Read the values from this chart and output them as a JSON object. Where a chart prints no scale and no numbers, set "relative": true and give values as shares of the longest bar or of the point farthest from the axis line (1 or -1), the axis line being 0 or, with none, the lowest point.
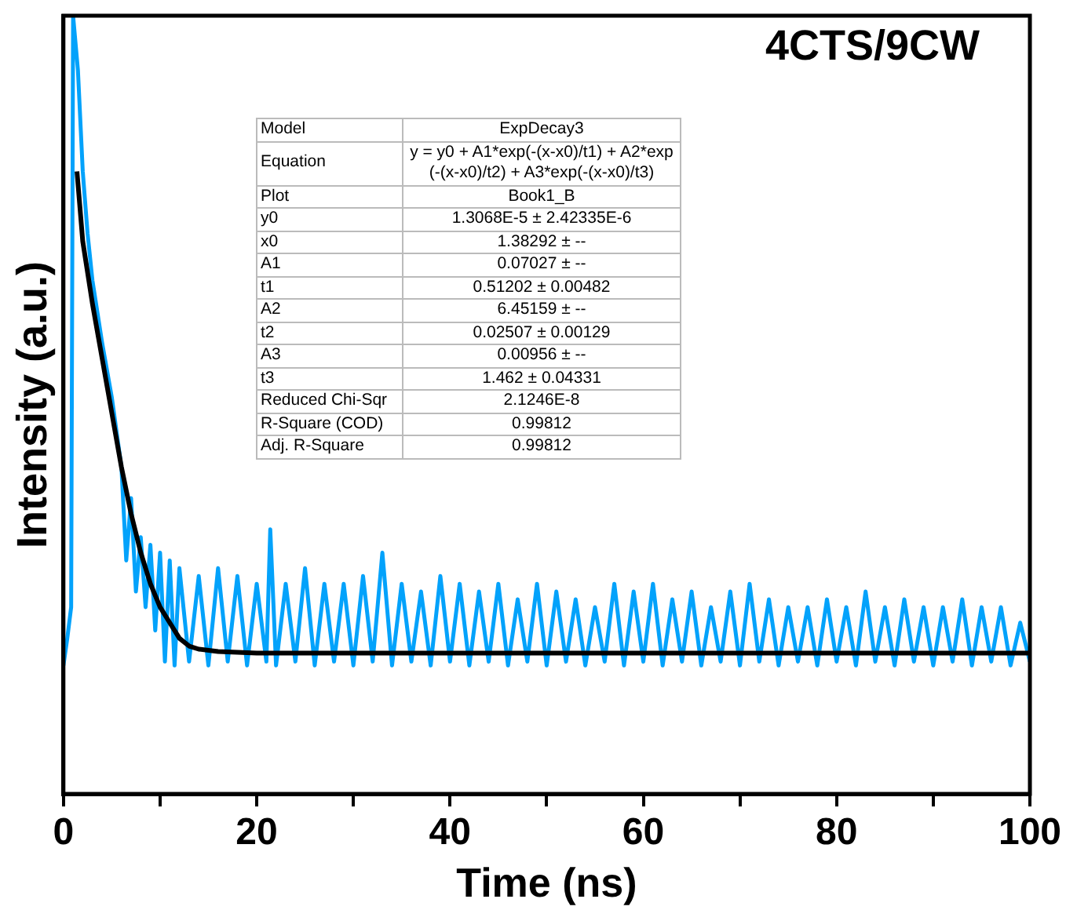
{
  "chart_data": {
    "type": "line",
    "relative": true,
    "title": "4CTS/9CW",
    "xlabel": "Time (ns)",
    "ylabel": "Intensity (a.u.)",
    "xlim": [
      0,
      100
    ],
    "xticks": [
      0,
      {
        "value": 10,
        "label": null
      },
      20,
      {
        "value": 30,
        "label": null
      },
      40,
      {
        "value": 50,
        "label": null
      },
      60,
      {
        "value": 70,
        "label": null
      },
      80,
      {
        "value": 90,
        "label": null
      },
      100
    ],
    "tick_labels": "x",
    "grid": false,
    "legend": false,
    "marker": "none",
    "line_style": "solid",
    "annotations": [
      "Model",
      "ExpDecay3",
      "Equation",
      "y = y0 + A1*exp(-(x-x0)/t1) + A2*exp(-(x-x0)/t2) + A3*exp(-(x-x0)/t3)",
      "Plot",
      "Book1_B",
      "y0",
      "1.3068E-5 ± 2.42335E-6",
      "x0",
      "1.38292 ± --",
      "A1",
      "0.07027 ± --",
      "t1",
      "0.51202 ± 0.00482",
      "A2",
      "6.45159 ± --",
      "t2",
      "0.02507 ± 0.00129",
      "A3",
      "0.00956 ± --",
      "t3",
      "1.462 ± 0.04331",
      "Reduced Chi-Sqr",
      "2.1246E-8",
      "R-Square (COD)",
      "0.99812",
      "Adj. R-Square",
      "0.99812"
    ],
    "series": [
      {
        "color": "#03a2fb",
        "x": [
          0,
          0.4,
          0.8,
          1.0,
          1.5,
          2,
          2.5,
          3,
          4,
          5,
          6,
          6.5,
          7,
          7.5,
          8,
          8.5,
          9,
          9.5,
          10,
          10.5,
          11,
          11.5,
          12,
          13,
          14,
          15,
          16,
          17,
          18,
          19,
          20,
          21,
          21.4,
          22,
          23,
          24,
          25,
          26,
          27,
          28,
          29,
          30,
          31,
          32,
          33,
          34,
          35,
          36,
          37,
          38,
          39,
          40,
          41,
          42,
          43,
          44,
          45,
          46,
          47,
          48,
          49,
          50,
          51,
          52,
          53,
          54,
          55,
          56,
          57,
          58,
          59,
          60,
          61,
          62,
          63,
          64,
          65,
          66,
          67,
          68,
          69,
          70,
          71,
          72,
          73,
          74,
          75,
          76,
          77,
          78,
          79,
          80,
          81,
          82,
          83,
          84,
          85,
          86,
          87,
          88,
          89,
          90,
          91,
          92,
          93,
          94,
          95,
          96,
          97,
          98,
          99,
          100
        ],
        "values": [
          0.165,
          0.2,
          0.24,
          1.0,
          0.93,
          0.8,
          0.72,
          0.66,
          0.58,
          0.51,
          0.42,
          0.3,
          0.38,
          0.26,
          0.33,
          0.24,
          0.32,
          0.21,
          0.31,
          0.17,
          0.3,
          0.165,
          0.29,
          0.17,
          0.28,
          0.165,
          0.29,
          0.17,
          0.28,
          0.165,
          0.27,
          0.17,
          0.34,
          0.165,
          0.27,
          0.17,
          0.29,
          0.165,
          0.27,
          0.17,
          0.27,
          0.165,
          0.28,
          0.17,
          0.31,
          0.165,
          0.27,
          0.17,
          0.26,
          0.165,
          0.28,
          0.17,
          0.27,
          0.165,
          0.26,
          0.17,
          0.27,
          0.165,
          0.25,
          0.17,
          0.27,
          0.165,
          0.26,
          0.17,
          0.25,
          0.165,
          0.24,
          0.17,
          0.27,
          0.165,
          0.26,
          0.17,
          0.27,
          0.165,
          0.25,
          0.17,
          0.26,
          0.165,
          0.24,
          0.17,
          0.26,
          0.165,
          0.27,
          0.17,
          0.25,
          0.165,
          0.24,
          0.17,
          0.24,
          0.165,
          0.25,
          0.17,
          0.24,
          0.165,
          0.26,
          0.17,
          0.24,
          0.165,
          0.25,
          0.17,
          0.24,
          0.165,
          0.24,
          0.17,
          0.25,
          0.165,
          0.24,
          0.17,
          0.24,
          0.165,
          0.22,
          0.17
        ]
      },
      {
        "color": "#000000",
        "x": [
          1.4,
          2,
          3,
          4,
          5,
          6,
          7,
          8,
          9,
          10,
          11,
          12,
          13,
          14,
          16,
          18,
          20,
          30,
          40,
          60,
          80,
          100
        ],
        "values": [
          0.8,
          0.71,
          0.63,
          0.56,
          0.49,
          0.42,
          0.36,
          0.31,
          0.27,
          0.24,
          0.22,
          0.2,
          0.19,
          0.186,
          0.183,
          0.182,
          0.181,
          0.181,
          0.181,
          0.181,
          0.181,
          0.181
        ]
      }
    ]
  }
}
